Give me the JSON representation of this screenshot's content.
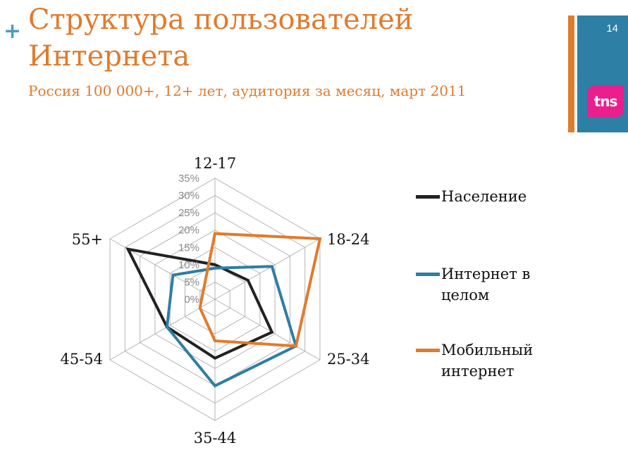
{
  "slide": {
    "title_line1": "Структура пользователей",
    "title_line2": "Интернета",
    "subtitle": "Россия 100 000+, 12+ лет, аудитория за месяц, март 2011",
    "page_number": "14",
    "plus_symbol": "+",
    "logo_text": "tns",
    "colors": {
      "title": "#e07b2e",
      "accent_blue": "#2d7fa6",
      "logo_pink": "#ea1e8c"
    }
  },
  "chart_data": {
    "type": "radar",
    "categories": [
      "12-17",
      "18-24",
      "25-34",
      "35-44",
      "45-54",
      "55+"
    ],
    "axis_ticks": [
      "0%",
      "5%",
      "10%",
      "15%",
      "20%",
      "25%",
      "30%",
      "35%"
    ],
    "rlim": [
      0,
      35
    ],
    "grid": true,
    "legend_position": "right",
    "series": [
      {
        "name": "Население",
        "color": "#222222",
        "values": [
          10,
          11,
          19,
          17,
          16,
          29
        ]
      },
      {
        "name": "Интернет в целом",
        "color": "#2e7ea3",
        "values": [
          9,
          19,
          27,
          25,
          16,
          14
        ]
      },
      {
        "name": "Мобильный интернет",
        "color": "#e07b2e",
        "values": [
          19,
          35,
          27,
          12,
          5,
          4
        ]
      }
    ]
  }
}
